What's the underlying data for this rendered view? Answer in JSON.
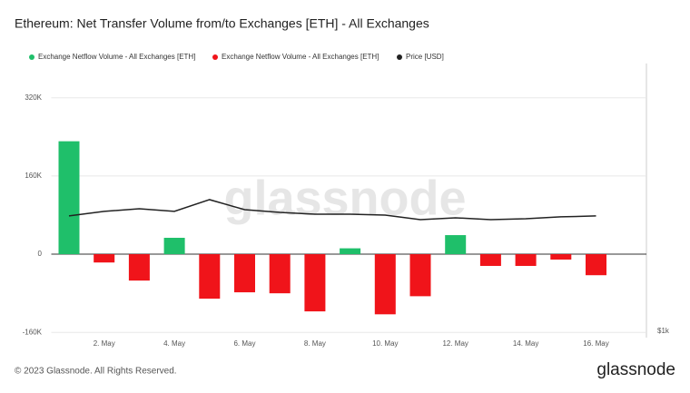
{
  "chart_data": {
    "type": "bar",
    "title": "Ethereum: Net Transfer Volume from/to Exchanges [ETH] - All Exchanges",
    "watermark": "glassnode",
    "footer": "© 2023 Glassnode. All Rights Reserved.",
    "logo": "glassnode",
    "categories": [
      null,
      "2. May",
      null,
      "4. May",
      null,
      "6. May",
      null,
      "8. May",
      null,
      "10. May",
      null,
      "12. May",
      null,
      "14. May",
      null,
      "16. May"
    ],
    "series": [
      {
        "name": "Exchange Netflow Volume - All Exchanges [ETH]",
        "color": "#1fbf6a",
        "type": "bar",
        "values": [
          231000,
          null,
          null,
          33500,
          null,
          null,
          null,
          null,
          12000,
          null,
          null,
          39000,
          null,
          null,
          null,
          null
        ]
      },
      {
        "name": "Exchange Netflow Volume - All Exchanges [ETH]",
        "color": "#f0141a",
        "type": "bar",
        "values": [
          null,
          -17000,
          -54000,
          null,
          -91000,
          -78000,
          -80000,
          -117000,
          null,
          -123000,
          -86000,
          null,
          -24000,
          -24000,
          -11000,
          -43000
        ]
      },
      {
        "name": "Price [USD]",
        "color": "#222222",
        "type": "line",
        "axis": "y2",
        "values": [
          1842,
          1887,
          1914,
          1887,
          2008,
          1904,
          1877,
          1859,
          1859,
          1850,
          1806,
          1824,
          1806,
          1815,
          1833,
          1842
        ]
      }
    ],
    "ylim": [
      -167000,
      390000
    ],
    "yticks": [
      {
        "value": -160000,
        "label": "-160K"
      },
      0,
      {
        "value": 160000,
        "label": "160K"
      },
      {
        "value": 320000,
        "label": "320K"
      }
    ],
    "y2lim": [
      976,
      4130
    ],
    "y2_log": true,
    "y2ticks": [
      {
        "value": 1000,
        "label": "$1k"
      }
    ],
    "grid": true
  }
}
